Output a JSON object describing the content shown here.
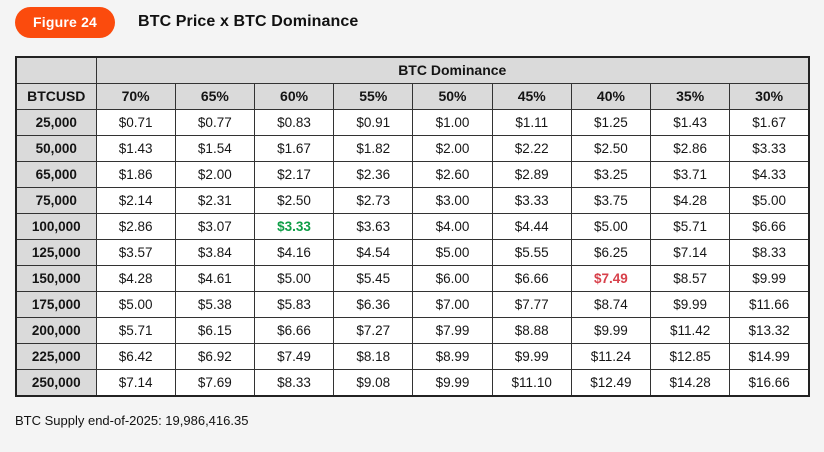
{
  "figure": {
    "badge_label": "Figure 24"
  },
  "colors": {
    "badge_background": "#FB4B0D",
    "positive_highlight": "#0F9E47",
    "negative_highlight": "#D8414B",
    "header_cell_background": "#DADADA",
    "page_background": "#F4F4F4"
  },
  "chart_data": {
    "type": "table",
    "title": "BTC Price x BTC Dominance",
    "group_header": "BTC Dominance",
    "corner_header": "BTCUSD",
    "columns": [
      "70%",
      "65%",
      "60%",
      "55%",
      "50%",
      "45%",
      "40%",
      "35%",
      "30%"
    ],
    "rows": [
      {
        "price": "25,000",
        "values": [
          "$0.71",
          "$0.77",
          "$0.83",
          "$0.91",
          "$1.00",
          "$1.11",
          "$1.25",
          "$1.43",
          "$1.67"
        ]
      },
      {
        "price": "50,000",
        "values": [
          "$1.43",
          "$1.54",
          "$1.67",
          "$1.82",
          "$2.00",
          "$2.22",
          "$2.50",
          "$2.86",
          "$3.33"
        ]
      },
      {
        "price": "65,000",
        "values": [
          "$1.86",
          "$2.00",
          "$2.17",
          "$2.36",
          "$2.60",
          "$2.89",
          "$3.25",
          "$3.71",
          "$4.33"
        ]
      },
      {
        "price": "75,000",
        "values": [
          "$2.14",
          "$2.31",
          "$2.50",
          "$2.73",
          "$3.00",
          "$3.33",
          "$3.75",
          "$4.28",
          "$5.00"
        ]
      },
      {
        "price": "100,000",
        "values": [
          "$2.86",
          "$3.07",
          "$3.33",
          "$3.63",
          "$4.00",
          "$4.44",
          "$5.00",
          "$5.71",
          "$6.66"
        ],
        "highlight": {
          "2": "positive"
        }
      },
      {
        "price": "125,000",
        "values": [
          "$3.57",
          "$3.84",
          "$4.16",
          "$4.54",
          "$5.00",
          "$5.55",
          "$6.25",
          "$7.14",
          "$8.33"
        ]
      },
      {
        "price": "150,000",
        "values": [
          "$4.28",
          "$4.61",
          "$5.00",
          "$5.45",
          "$6.00",
          "$6.66",
          "$7.49",
          "$8.57",
          "$9.99"
        ],
        "highlight": {
          "6": "negative"
        }
      },
      {
        "price": "175,000",
        "values": [
          "$5.00",
          "$5.38",
          "$5.83",
          "$6.36",
          "$7.00",
          "$7.77",
          "$8.74",
          "$9.99",
          "$11.66"
        ]
      },
      {
        "price": "200,000",
        "values": [
          "$5.71",
          "$6.15",
          "$6.66",
          "$7.27",
          "$7.99",
          "$8.88",
          "$9.99",
          "$11.42",
          "$13.32"
        ]
      },
      {
        "price": "225,000",
        "values": [
          "$6.42",
          "$6.92",
          "$7.49",
          "$8.18",
          "$8.99",
          "$9.99",
          "$11.24",
          "$12.85",
          "$14.99"
        ]
      },
      {
        "price": "250,000",
        "values": [
          "$7.14",
          "$7.69",
          "$8.33",
          "$9.08",
          "$9.99",
          "$11.10",
          "$12.49",
          "$14.28",
          "$16.66"
        ]
      }
    ],
    "highlighted_cells": [
      {
        "price": "100,000",
        "dominance": "60%",
        "value": "$3.33",
        "style": "positive"
      },
      {
        "price": "150,000",
        "dominance": "40%",
        "value": "$7.49",
        "style": "negative"
      }
    ],
    "footnote": "BTC Supply end-of-2025: 19,986,416.35"
  }
}
